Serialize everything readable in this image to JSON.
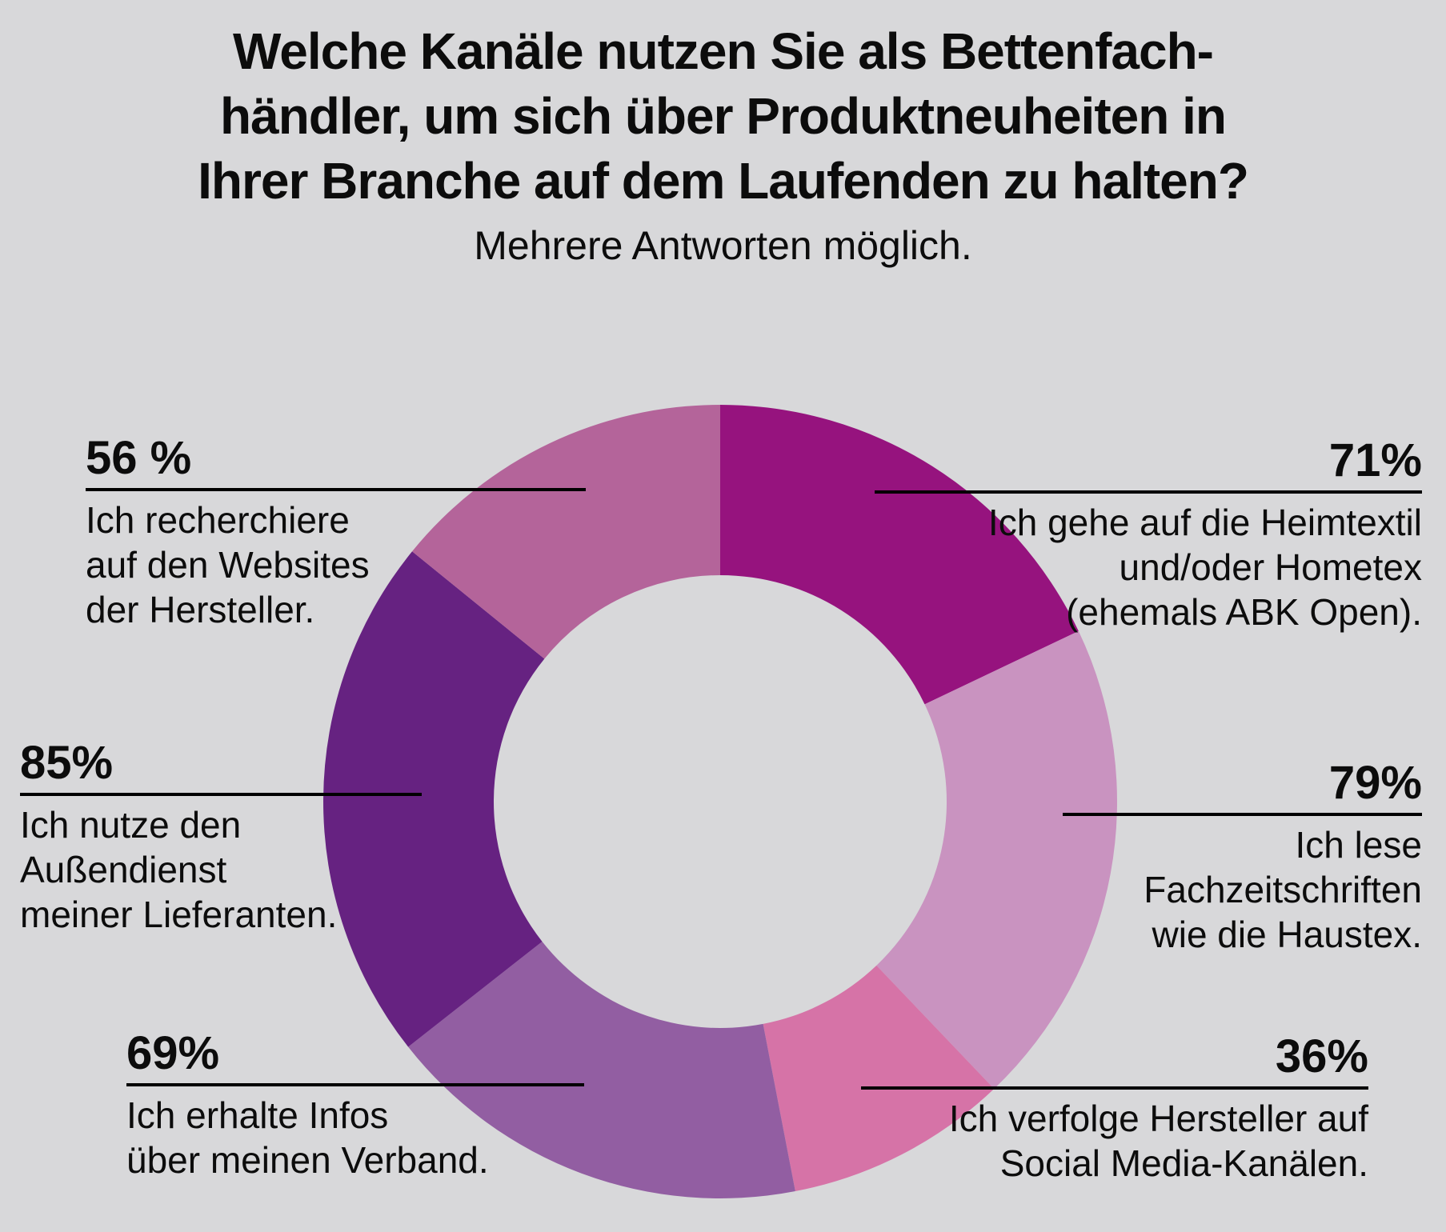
{
  "title": {
    "lines": [
      "Welche Kanäle nutzen Sie als Bettenfach-",
      "händler, um sich über Produktneuheiten in",
      "Ihrer Branche auf dem Laufenden zu halten?"
    ],
    "subtitle": "Mehrere Antworten möglich."
  },
  "chart_data": {
    "type": "pie",
    "variant": "donut",
    "unit": "%",
    "title": "Welche Kanäle nutzen Sie als Bettenfachhändler, um sich über Produktneuheiten in Ihrer Branche auf dem Laufenden zu halten?",
    "subtitle": "Mehrere Antworten möglich.",
    "start_angle_deg": 0,
    "direction": "clockwise",
    "inner_radius_ratio": 0.57,
    "background_color": "#d8d8da",
    "values_sum": 396,
    "legend": "none (outside labels with leader lines)",
    "segments": [
      {
        "label": "Ich gehe auf die Heimtextil und/oder Hometex (ehemals ABK Open).",
        "value": 71,
        "color": "#96137e"
      },
      {
        "label": "Ich lese Fachzeitschriften wie die Haustex.",
        "value": 79,
        "color": "#c993c0"
      },
      {
        "label": "Ich verfolge Hersteller auf Social Media-Kanälen.",
        "value": 36,
        "color": "#d673a7"
      },
      {
        "label": "Ich erhalte Infos über meinen Verband.",
        "value": 69,
        "color": "#925ea2"
      },
      {
        "label": "Ich nutze den Außendienst meiner Lieferanten.",
        "value": 85,
        "color": "#662281"
      },
      {
        "label": "Ich recherchiere auf den Websites der Hersteller.",
        "value": 56,
        "color": "#b4649a"
      }
    ]
  },
  "callouts": [
    {
      "percent": "71%",
      "lines": [
        "Ich gehe auf die Heimtextil",
        "und/oder Hometex",
        "(ehemals ABK Open)."
      ]
    },
    {
      "percent": "79%",
      "lines": [
        "Ich lese",
        "Fachzeitschriften",
        "wie die Haustex."
      ]
    },
    {
      "percent": "36%",
      "lines": [
        "Ich verfolge Hersteller auf",
        "Social Media-Kanälen."
      ]
    },
    {
      "percent": "69%",
      "lines": [
        "Ich erhalte Infos",
        "über meinen Verband."
      ]
    },
    {
      "percent": "85%",
      "lines": [
        "Ich nutze den",
        "Außendienst",
        "meiner Lieferanten."
      ]
    },
    {
      "percent": "56 %",
      "lines": [
        "Ich recherchiere",
        "auf den Websites",
        "der Hersteller."
      ]
    }
  ]
}
